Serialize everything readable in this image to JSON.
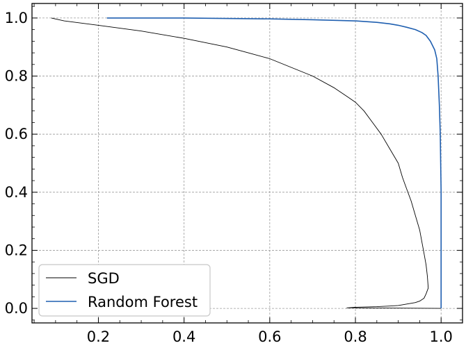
{
  "chart_data": {
    "type": "line",
    "title": "",
    "xlabel": "",
    "ylabel": "",
    "xlim": [
      0.045,
      1.05
    ],
    "ylim": [
      -0.05,
      1.05
    ],
    "grid": true,
    "legend_position": "lower-left",
    "x_ticks": [
      {
        "value": 0.2,
        "label": "0.2"
      },
      {
        "value": 0.4,
        "label": "0.4"
      },
      {
        "value": 0.6,
        "label": "0.6"
      },
      {
        "value": 0.8,
        "label": "0.8"
      },
      {
        "value": 1.0,
        "label": "1.0"
      }
    ],
    "y_ticks": [
      {
        "value": 0.0,
        "label": "0.0"
      },
      {
        "value": 0.2,
        "label": "0.2"
      },
      {
        "value": 0.4,
        "label": "0.4"
      },
      {
        "value": 0.6,
        "label": "0.6"
      },
      {
        "value": 0.8,
        "label": "0.8"
      },
      {
        "value": 1.0,
        "label": "1.0"
      }
    ],
    "series": [
      {
        "name": "SGD",
        "color": "#000000",
        "x": [
          0.09,
          0.12,
          0.2,
          0.3,
          0.4,
          0.5,
          0.55,
          0.6,
          0.65,
          0.7,
          0.75,
          0.78,
          0.8,
          0.82,
          0.84,
          0.86,
          0.88,
          0.9,
          0.91,
          0.92,
          0.93,
          0.94,
          0.95,
          0.955,
          0.96,
          0.965,
          0.968,
          0.97,
          0.965,
          0.96,
          0.95,
          0.94,
          0.92,
          0.9,
          0.88,
          0.85,
          0.8,
          0.78,
          1.0
        ],
        "y": [
          1.0,
          0.99,
          0.975,
          0.955,
          0.93,
          0.9,
          0.88,
          0.86,
          0.83,
          0.8,
          0.76,
          0.73,
          0.71,
          0.68,
          0.64,
          0.6,
          0.55,
          0.5,
          0.45,
          0.41,
          0.37,
          0.32,
          0.27,
          0.23,
          0.19,
          0.15,
          0.11,
          0.07,
          0.05,
          0.035,
          0.025,
          0.02,
          0.015,
          0.01,
          0.008,
          0.006,
          0.004,
          0.002,
          0.0
        ]
      },
      {
        "name": "Random Forest",
        "color": "#1f5fb0",
        "x": [
          0.22,
          0.4,
          0.6,
          0.7,
          0.8,
          0.85,
          0.88,
          0.9,
          0.92,
          0.94,
          0.955,
          0.965,
          0.975,
          0.985,
          0.99,
          0.993,
          0.996,
          0.998,
          0.999,
          1.0,
          1.0,
          1.0
        ],
        "y": [
          1.0,
          1.0,
          0.997,
          0.994,
          0.99,
          0.985,
          0.98,
          0.975,
          0.968,
          0.96,
          0.95,
          0.94,
          0.92,
          0.89,
          0.86,
          0.8,
          0.7,
          0.6,
          0.5,
          0.4,
          0.2,
          0.0
        ]
      }
    ]
  }
}
